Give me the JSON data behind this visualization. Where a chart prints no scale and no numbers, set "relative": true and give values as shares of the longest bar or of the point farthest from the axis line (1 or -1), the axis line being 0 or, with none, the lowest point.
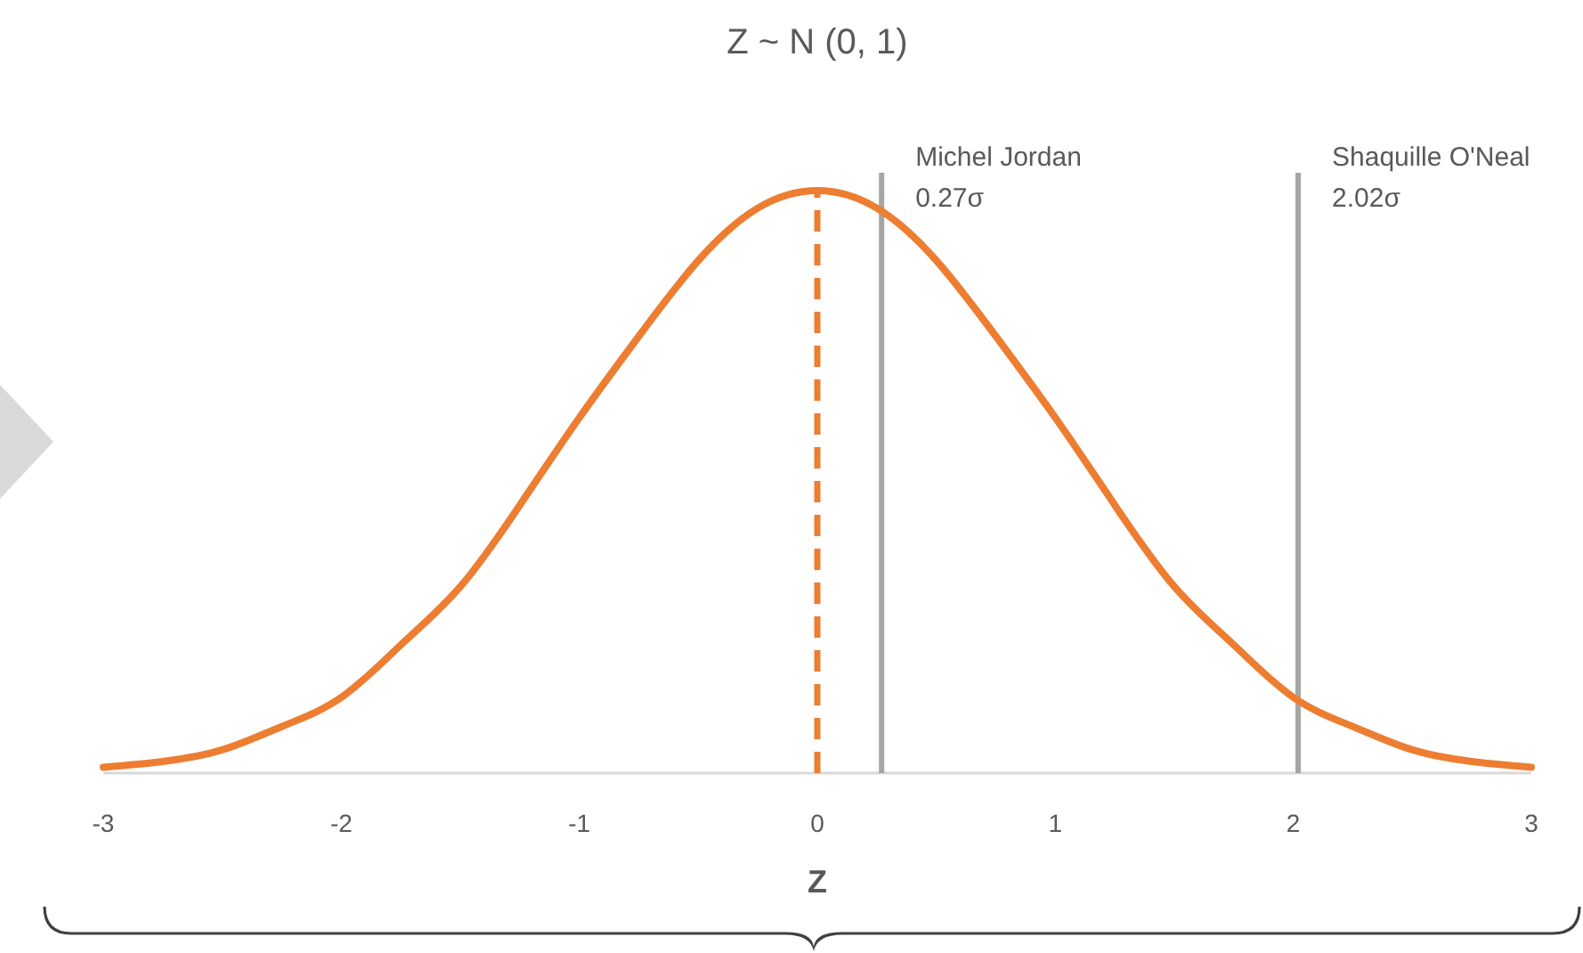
{
  "chart_data": {
    "type": "line",
    "title": "Z ~ N (0, 1)",
    "xlabel": "Z",
    "x": [
      -3,
      -2.75,
      -2.5,
      -2.25,
      -2,
      -1.75,
      -1.5,
      -1.25,
      -1,
      -0.75,
      -0.5,
      -0.25,
      0,
      0.25,
      0.5,
      0.75,
      1,
      1.25,
      1.5,
      1.75,
      2,
      2.25,
      2.5,
      2.75,
      3
    ],
    "values": [
      0.01,
      0.02,
      0.04,
      0.08,
      0.13,
      0.22,
      0.32,
      0.46,
      0.61,
      0.75,
      0.88,
      0.97,
      1,
      0.97,
      0.88,
      0.75,
      0.61,
      0.46,
      0.32,
      0.22,
      0.13,
      0.08,
      0.04,
      0.02,
      0.01
    ],
    "color": "#ed7d31",
    "relative": true,
    "xlim": [
      -3,
      3
    ],
    "xticks": [
      -3,
      -2,
      -1,
      0,
      1,
      2,
      3
    ],
    "ref_lines": [
      {
        "axis": "x",
        "value": 0,
        "color": "#ed7d31",
        "line_style": "dashed"
      },
      {
        "axis": "x",
        "value": 0.27,
        "label": "Michel Jordan\n0.27σ",
        "color": "#a5a5a5",
        "line_style": "solid"
      },
      {
        "axis": "x",
        "value": 2.02,
        "label": "Shaquille O'Neal\n2.02σ",
        "color": "#a5a5a5",
        "line_style": "solid"
      }
    ]
  }
}
